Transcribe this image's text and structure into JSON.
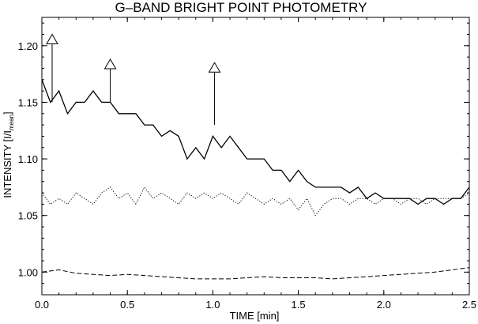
{
  "chart_data": {
    "type": "line",
    "title": "G–BAND BRIGHT POINT PHOTOMETRY",
    "xlabel": "TIME [min]",
    "ylabel_main": "INTENSITY [I/I",
    "ylabel_sub": "mean",
    "ylabel_close": "]",
    "xlim": [
      0.0,
      2.5
    ],
    "ylim": [
      0.98,
      1.225
    ],
    "x_ticks": [
      "0.0",
      "0.5",
      "1.0",
      "1.5",
      "2.0",
      "2.5"
    ],
    "x_tick_values": [
      0.0,
      0.5,
      1.0,
      1.5,
      2.0,
      2.5
    ],
    "y_ticks": [
      "1.00",
      "1.05",
      "1.10",
      "1.15",
      "1.20"
    ],
    "y_tick_values": [
      1.0,
      1.05,
      1.1,
      1.15,
      1.2
    ],
    "grid": false,
    "series": [
      {
        "style": "solid",
        "x": [
          0.0,
          0.05,
          0.1,
          0.15,
          0.2,
          0.25,
          0.3,
          0.35,
          0.4,
          0.45,
          0.5,
          0.55,
          0.6,
          0.65,
          0.7,
          0.75,
          0.8,
          0.85,
          0.9,
          0.95,
          1.0,
          1.05,
          1.1,
          1.15,
          1.2,
          1.25,
          1.3,
          1.35,
          1.4,
          1.45,
          1.5,
          1.55,
          1.6,
          1.65,
          1.7,
          1.75,
          1.8,
          1.85,
          1.9,
          1.95,
          2.0,
          2.05,
          2.1,
          2.15,
          2.2,
          2.25,
          2.3,
          2.35,
          2.4,
          2.45,
          2.5
        ],
        "y": [
          1.17,
          1.15,
          1.16,
          1.14,
          1.15,
          1.15,
          1.16,
          1.15,
          1.15,
          1.14,
          1.14,
          1.14,
          1.13,
          1.13,
          1.12,
          1.125,
          1.12,
          1.1,
          1.11,
          1.1,
          1.12,
          1.11,
          1.12,
          1.11,
          1.1,
          1.1,
          1.1,
          1.09,
          1.09,
          1.08,
          1.09,
          1.08,
          1.075,
          1.075,
          1.075,
          1.075,
          1.07,
          1.075,
          1.065,
          1.07,
          1.065,
          1.065,
          1.065,
          1.065,
          1.06,
          1.065,
          1.065,
          1.06,
          1.065,
          1.065,
          1.075
        ]
      },
      {
        "style": "dotted",
        "x": [
          0.0,
          0.05,
          0.1,
          0.15,
          0.2,
          0.25,
          0.3,
          0.35,
          0.4,
          0.45,
          0.5,
          0.55,
          0.6,
          0.65,
          0.7,
          0.75,
          0.8,
          0.85,
          0.9,
          0.95,
          1.0,
          1.05,
          1.1,
          1.15,
          1.2,
          1.25,
          1.3,
          1.35,
          1.4,
          1.45,
          1.5,
          1.55,
          1.6,
          1.65,
          1.7,
          1.75,
          1.8,
          1.85,
          1.9,
          1.95,
          2.0,
          2.05,
          2.1,
          2.15,
          2.2,
          2.25,
          2.3,
          2.35,
          2.4,
          2.45,
          2.5
        ],
        "y": [
          1.07,
          1.06,
          1.065,
          1.06,
          1.07,
          1.065,
          1.06,
          1.07,
          1.075,
          1.065,
          1.07,
          1.06,
          1.075,
          1.065,
          1.07,
          1.065,
          1.06,
          1.07,
          1.065,
          1.07,
          1.065,
          1.07,
          1.065,
          1.06,
          1.07,
          1.065,
          1.06,
          1.065,
          1.06,
          1.065,
          1.055,
          1.065,
          1.05,
          1.06,
          1.065,
          1.065,
          1.06,
          1.065,
          1.065,
          1.06,
          1.065,
          1.065,
          1.06,
          1.065,
          1.065,
          1.06,
          1.065,
          1.065,
          1.065,
          1.065,
          1.07
        ]
      },
      {
        "style": "dashed",
        "x": [
          0.0,
          0.1,
          0.2,
          0.3,
          0.4,
          0.5,
          0.6,
          0.7,
          0.8,
          0.9,
          1.0,
          1.1,
          1.2,
          1.3,
          1.4,
          1.5,
          1.6,
          1.7,
          1.8,
          1.9,
          2.0,
          2.1,
          2.2,
          2.3,
          2.4,
          2.5
        ],
        "y": [
          1.0,
          1.002,
          0.999,
          0.998,
          0.997,
          0.998,
          0.997,
          0.996,
          0.995,
          0.994,
          0.994,
          0.994,
          0.995,
          0.996,
          0.995,
          0.995,
          0.995,
          0.994,
          0.995,
          0.996,
          0.997,
          0.998,
          0.999,
          1.0,
          1.002,
          1.004
        ]
      }
    ],
    "annotations": [
      {
        "type": "arrow-up",
        "x": 0.06,
        "y_from": 1.15,
        "y_to": 1.21
      },
      {
        "type": "arrow-up",
        "x": 0.4,
        "y_from": 1.15,
        "y_to": 1.188
      },
      {
        "type": "arrow-up",
        "x": 1.01,
        "y_from": 1.13,
        "y_to": 1.185
      }
    ]
  }
}
